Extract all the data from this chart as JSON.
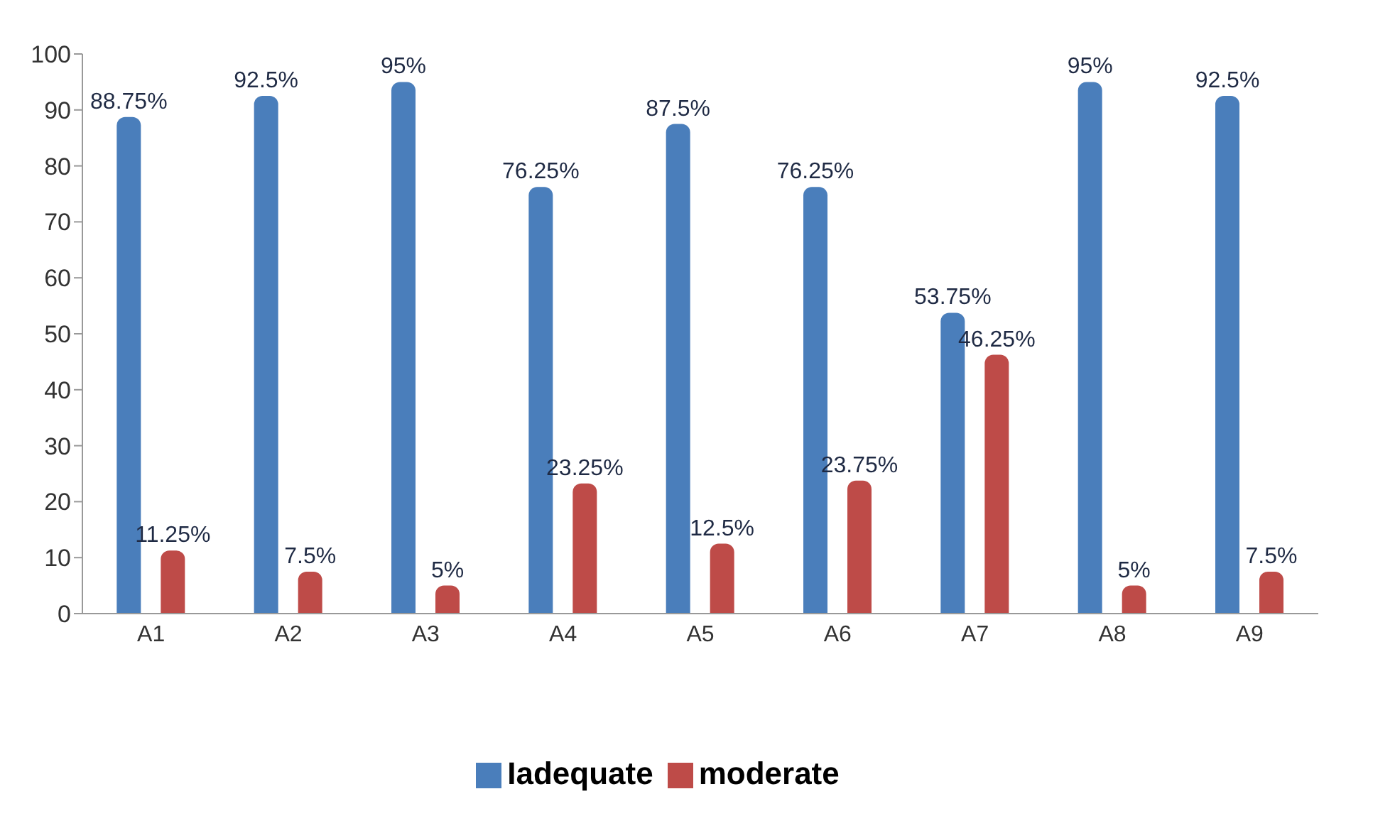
{
  "chart_data": {
    "type": "bar",
    "categories": [
      "A1",
      "A2",
      "A3",
      "A4",
      "A5",
      "A6",
      "A7",
      "A8",
      "A9"
    ],
    "series": [
      {
        "name": "Iadequate",
        "color": "#4a7ebb",
        "values": [
          88.75,
          92.5,
          95,
          76.25,
          87.5,
          76.25,
          53.75,
          95,
          92.5
        ],
        "value_labels": [
          "88.75%",
          "92.5%",
          "95%",
          "76.25%",
          "87.5%",
          "76.25%",
          "53.75%",
          "95%",
          "92.5%"
        ]
      },
      {
        "name": "moderate",
        "color": "#be4b48",
        "values": [
          11.25,
          7.5,
          5,
          23.25,
          12.5,
          23.75,
          46.25,
          5,
          7.5
        ],
        "value_labels": [
          "11.25%",
          "7.5%",
          "5%",
          "23.25%",
          "12.5%",
          "23.75%",
          "46.25%",
          "5%",
          "7.5%"
        ]
      }
    ],
    "ylim": [
      0,
      100
    ],
    "yticks": [
      0,
      10,
      20,
      30,
      40,
      50,
      60,
      70,
      80,
      90,
      100
    ],
    "grid": false,
    "legend": "bottom"
  }
}
